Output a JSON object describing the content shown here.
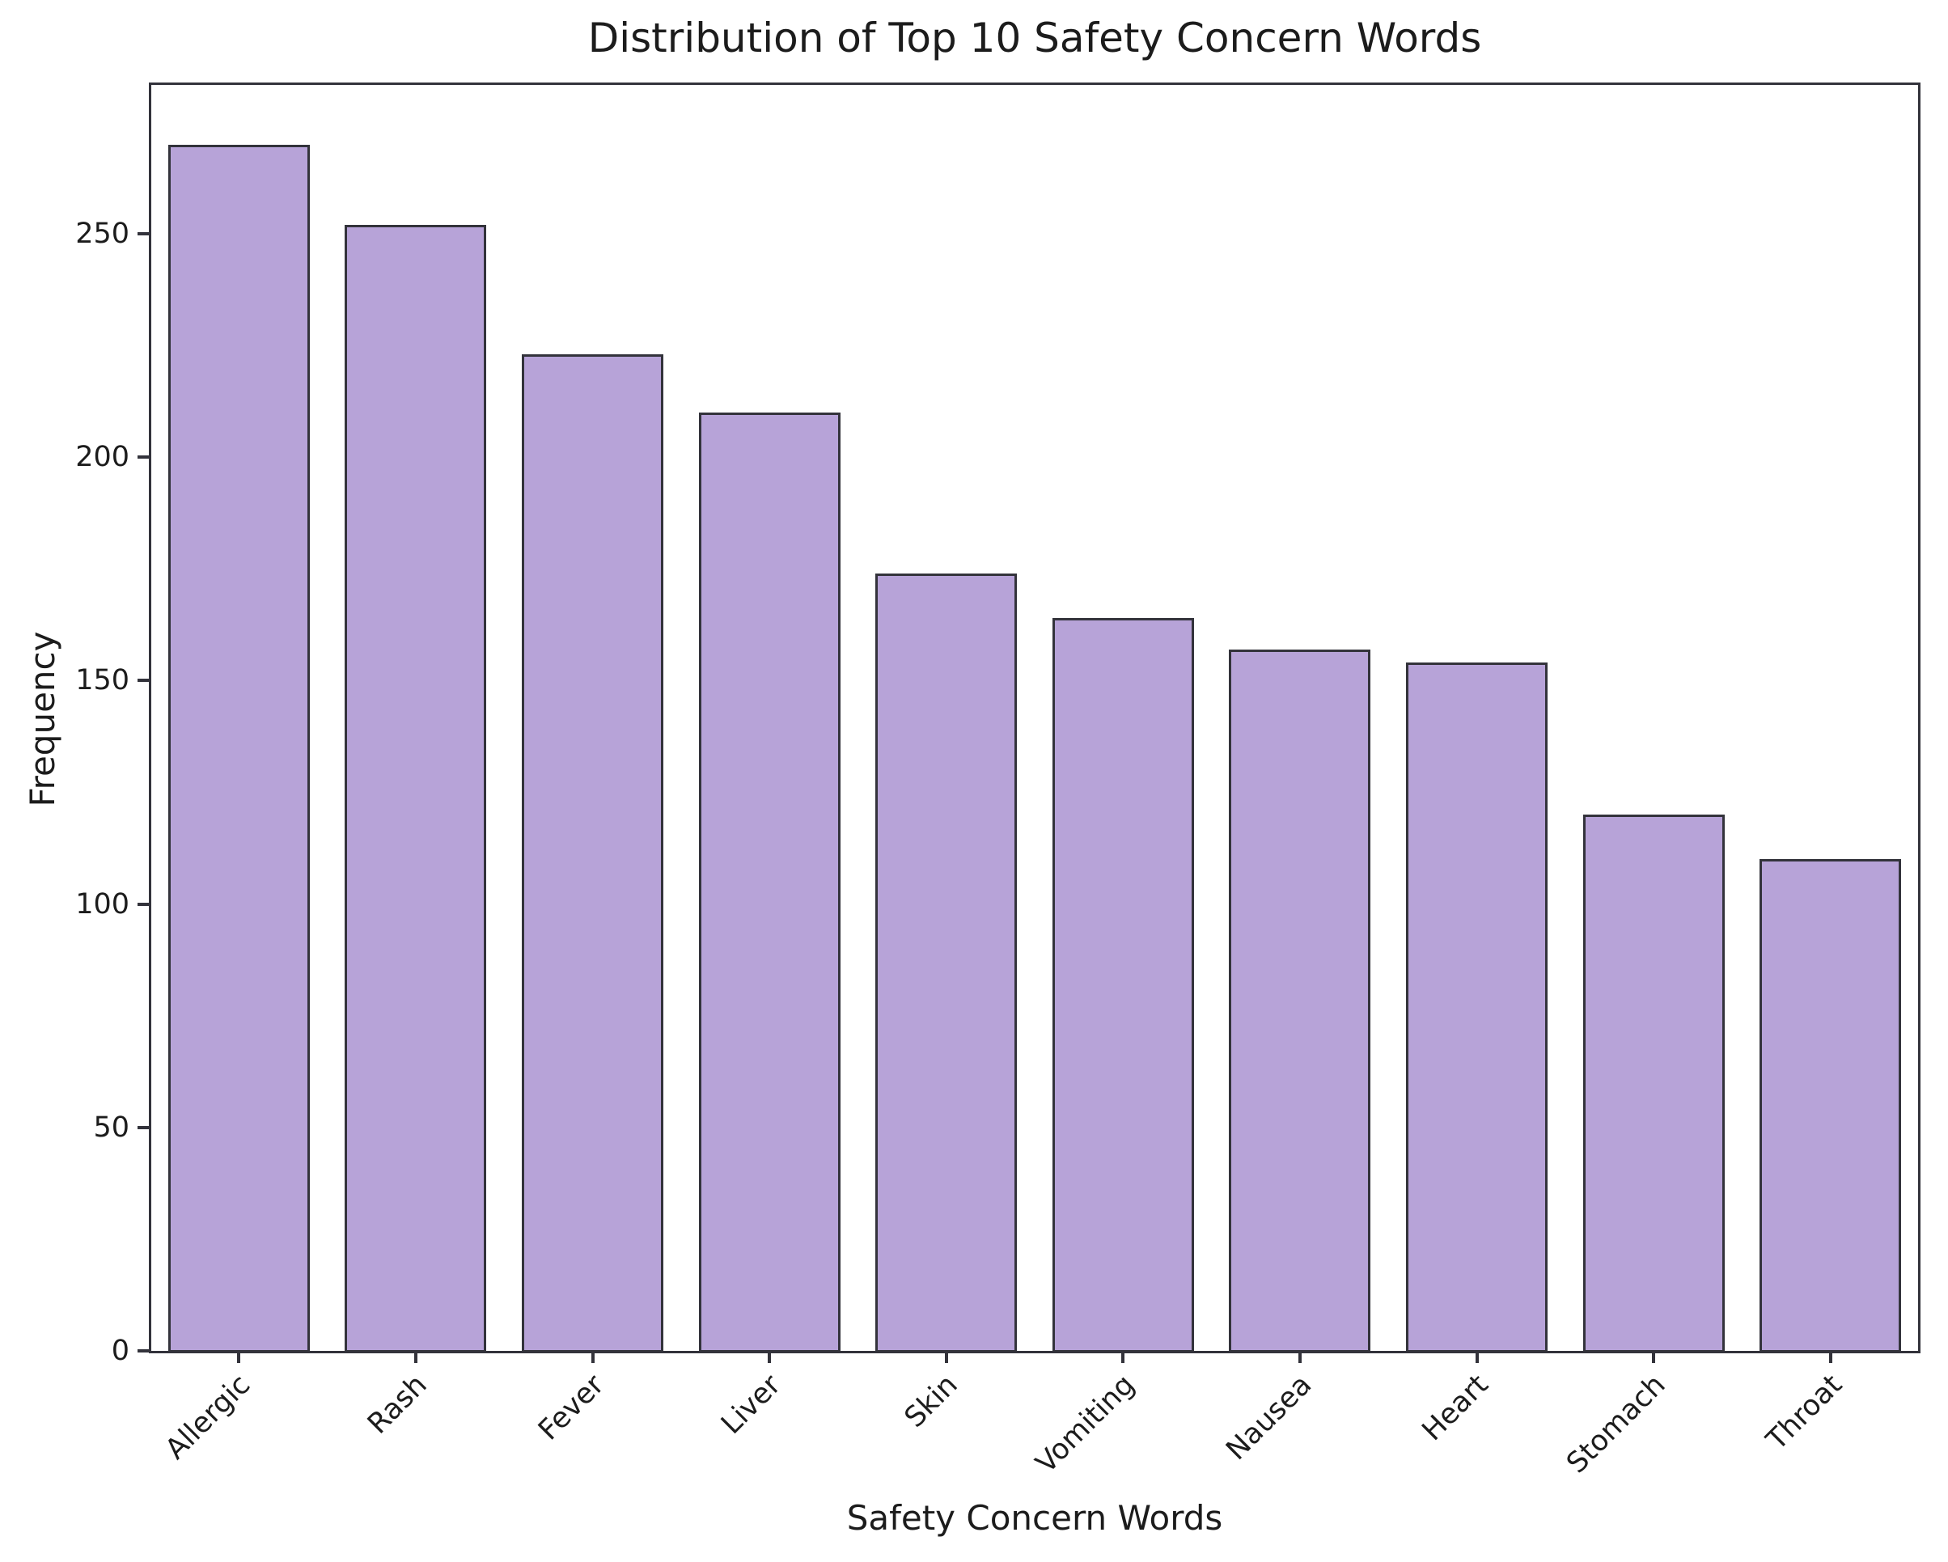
{
  "chart_data": {
    "type": "bar",
    "title": "Distribution of Top 10 Safety Concern Words",
    "xlabel": "Safety Concern Words",
    "ylabel": "Frequency",
    "categories": [
      "Allergic",
      "Rash",
      "Fever",
      "Liver",
      "Skin",
      "Vomiting",
      "Nausea",
      "Heart",
      "Stomach",
      "Throat"
    ],
    "values": [
      270,
      252,
      223,
      210,
      174,
      164,
      157,
      154,
      120,
      110
    ],
    "yticks": [
      0,
      50,
      100,
      150,
      200,
      250
    ],
    "ylim": [
      0,
      283.5
    ],
    "grid": false,
    "legend": "none",
    "x_tick_rotation_deg": 45,
    "bar_width_fraction": 0.8,
    "colors": {
      "bar_fill": "#b7a3d8",
      "bar_edge": "#33333b",
      "axis": "#33333b",
      "text": "#1c1c1c",
      "background": "#ffffff"
    }
  }
}
